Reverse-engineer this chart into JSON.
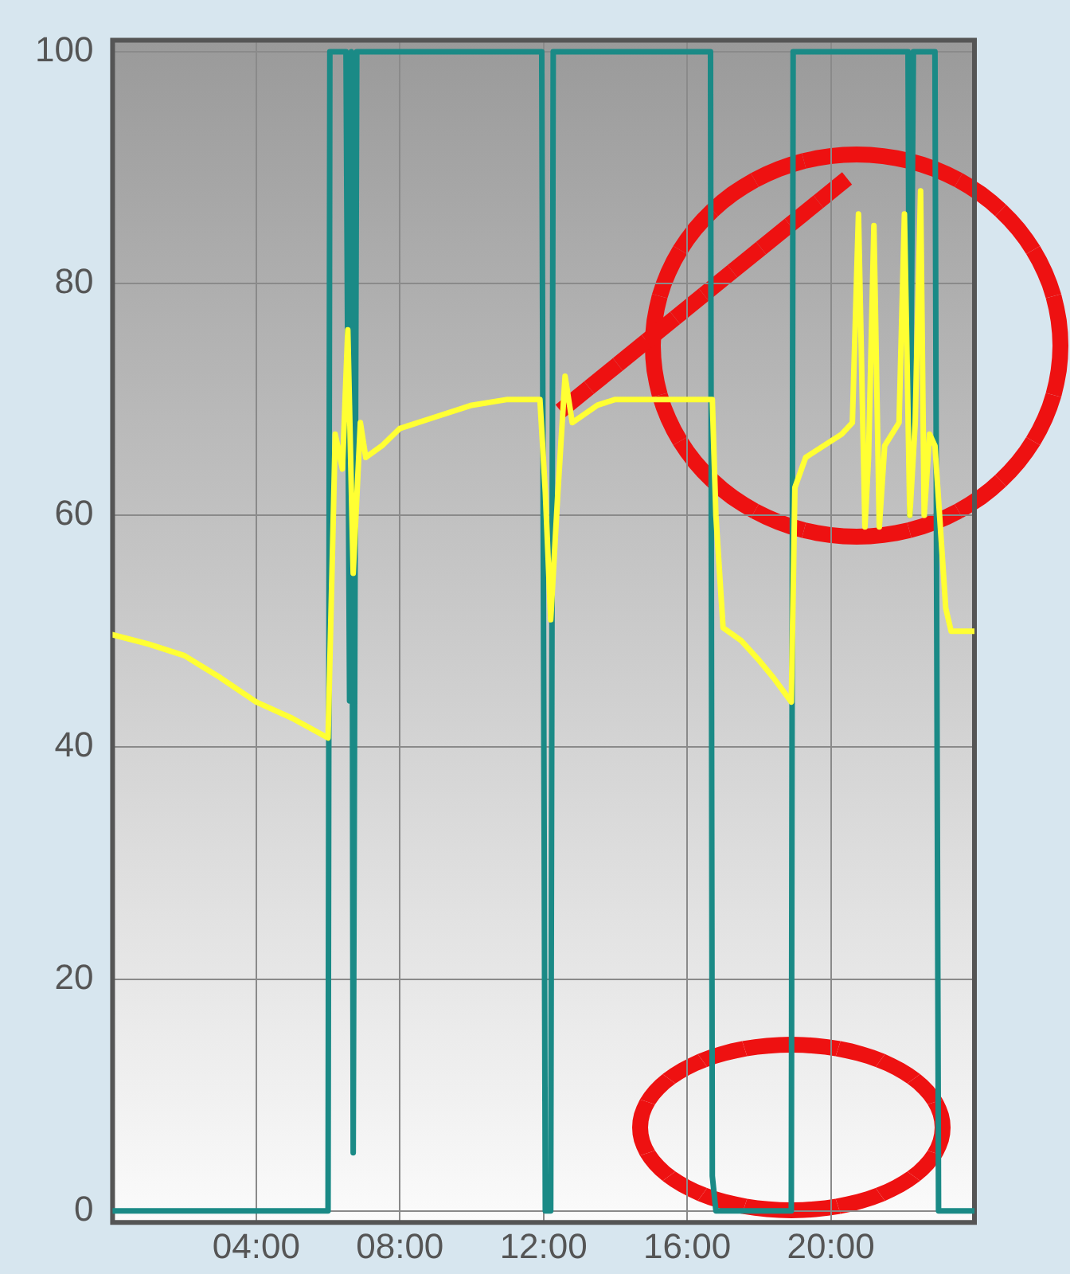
{
  "chart_data": {
    "type": "line",
    "xlim": [
      0,
      24
    ],
    "xticks": [
      {
        "value": 0,
        "label": null
      },
      {
        "value": 4,
        "label": "04:00"
      },
      {
        "value": 8,
        "label": "08:00"
      },
      {
        "value": 12,
        "label": "12:00"
      },
      {
        "value": 16,
        "label": "16:00"
      },
      {
        "value": 20,
        "label": "20:00"
      },
      {
        "value": 24,
        "label": null
      }
    ],
    "ylim": [
      -1,
      101
    ],
    "yticks": [
      0,
      20,
      40,
      60,
      80,
      100
    ],
    "grid": true,
    "legend": false,
    "marker": "none",
    "line_style": "solid",
    "series": [
      {
        "color": "#1a8a86",
        "x": [
          0,
          6.0,
          6.05,
          6.5,
          6.6,
          6.65,
          6.7,
          6.8,
          11.95,
          12.05,
          12.2,
          12.27,
          16.65,
          16.7,
          16.8,
          18.9,
          18.95,
          22.15,
          22.2,
          22.3,
          22.9,
          23.0,
          24
        ],
        "values": [
          0,
          0,
          100,
          100,
          44,
          100,
          5,
          100,
          100,
          0,
          0,
          100,
          100,
          3,
          0,
          0,
          100,
          100,
          60,
          100,
          100,
          0,
          0
        ]
      },
      {
        "color": "#ffff33",
        "x": [
          0,
          1,
          2,
          3,
          4,
          5,
          6.0,
          6.2,
          6.4,
          6.55,
          6.7,
          6.9,
          7.05,
          7.5,
          8,
          9,
          10,
          11,
          11.9,
          12.05,
          12.2,
          12.4,
          12.6,
          12.8,
          13.5,
          14,
          15,
          16,
          16.7,
          16.8,
          17.0,
          17.5,
          18.0,
          18.4,
          18.9,
          19.0,
          19.3,
          19.8,
          20.3,
          20.6,
          20.77,
          20.95,
          21.05,
          21.2,
          21.35,
          21.5,
          21.9,
          22.05,
          22.2,
          22.35,
          22.5,
          22.6,
          22.75,
          22.9,
          23.2,
          23.35,
          24
        ],
        "values": [
          49.7,
          48.9,
          47.9,
          46.0,
          43.9,
          42.5,
          40.8,
          67,
          64,
          76,
          55,
          68,
          65,
          66,
          67.5,
          68.5,
          69.5,
          70,
          70,
          62,
          51,
          62,
          72,
          68,
          69.5,
          70,
          70,
          70,
          70,
          60,
          50.3,
          49.2,
          47.5,
          46,
          43.9,
          62.4,
          65,
          66,
          67,
          68,
          86,
          59,
          65,
          85,
          59,
          66,
          68,
          86,
          60,
          68,
          88,
          60,
          67,
          66,
          52,
          50,
          50
        ]
      }
    ]
  }
}
